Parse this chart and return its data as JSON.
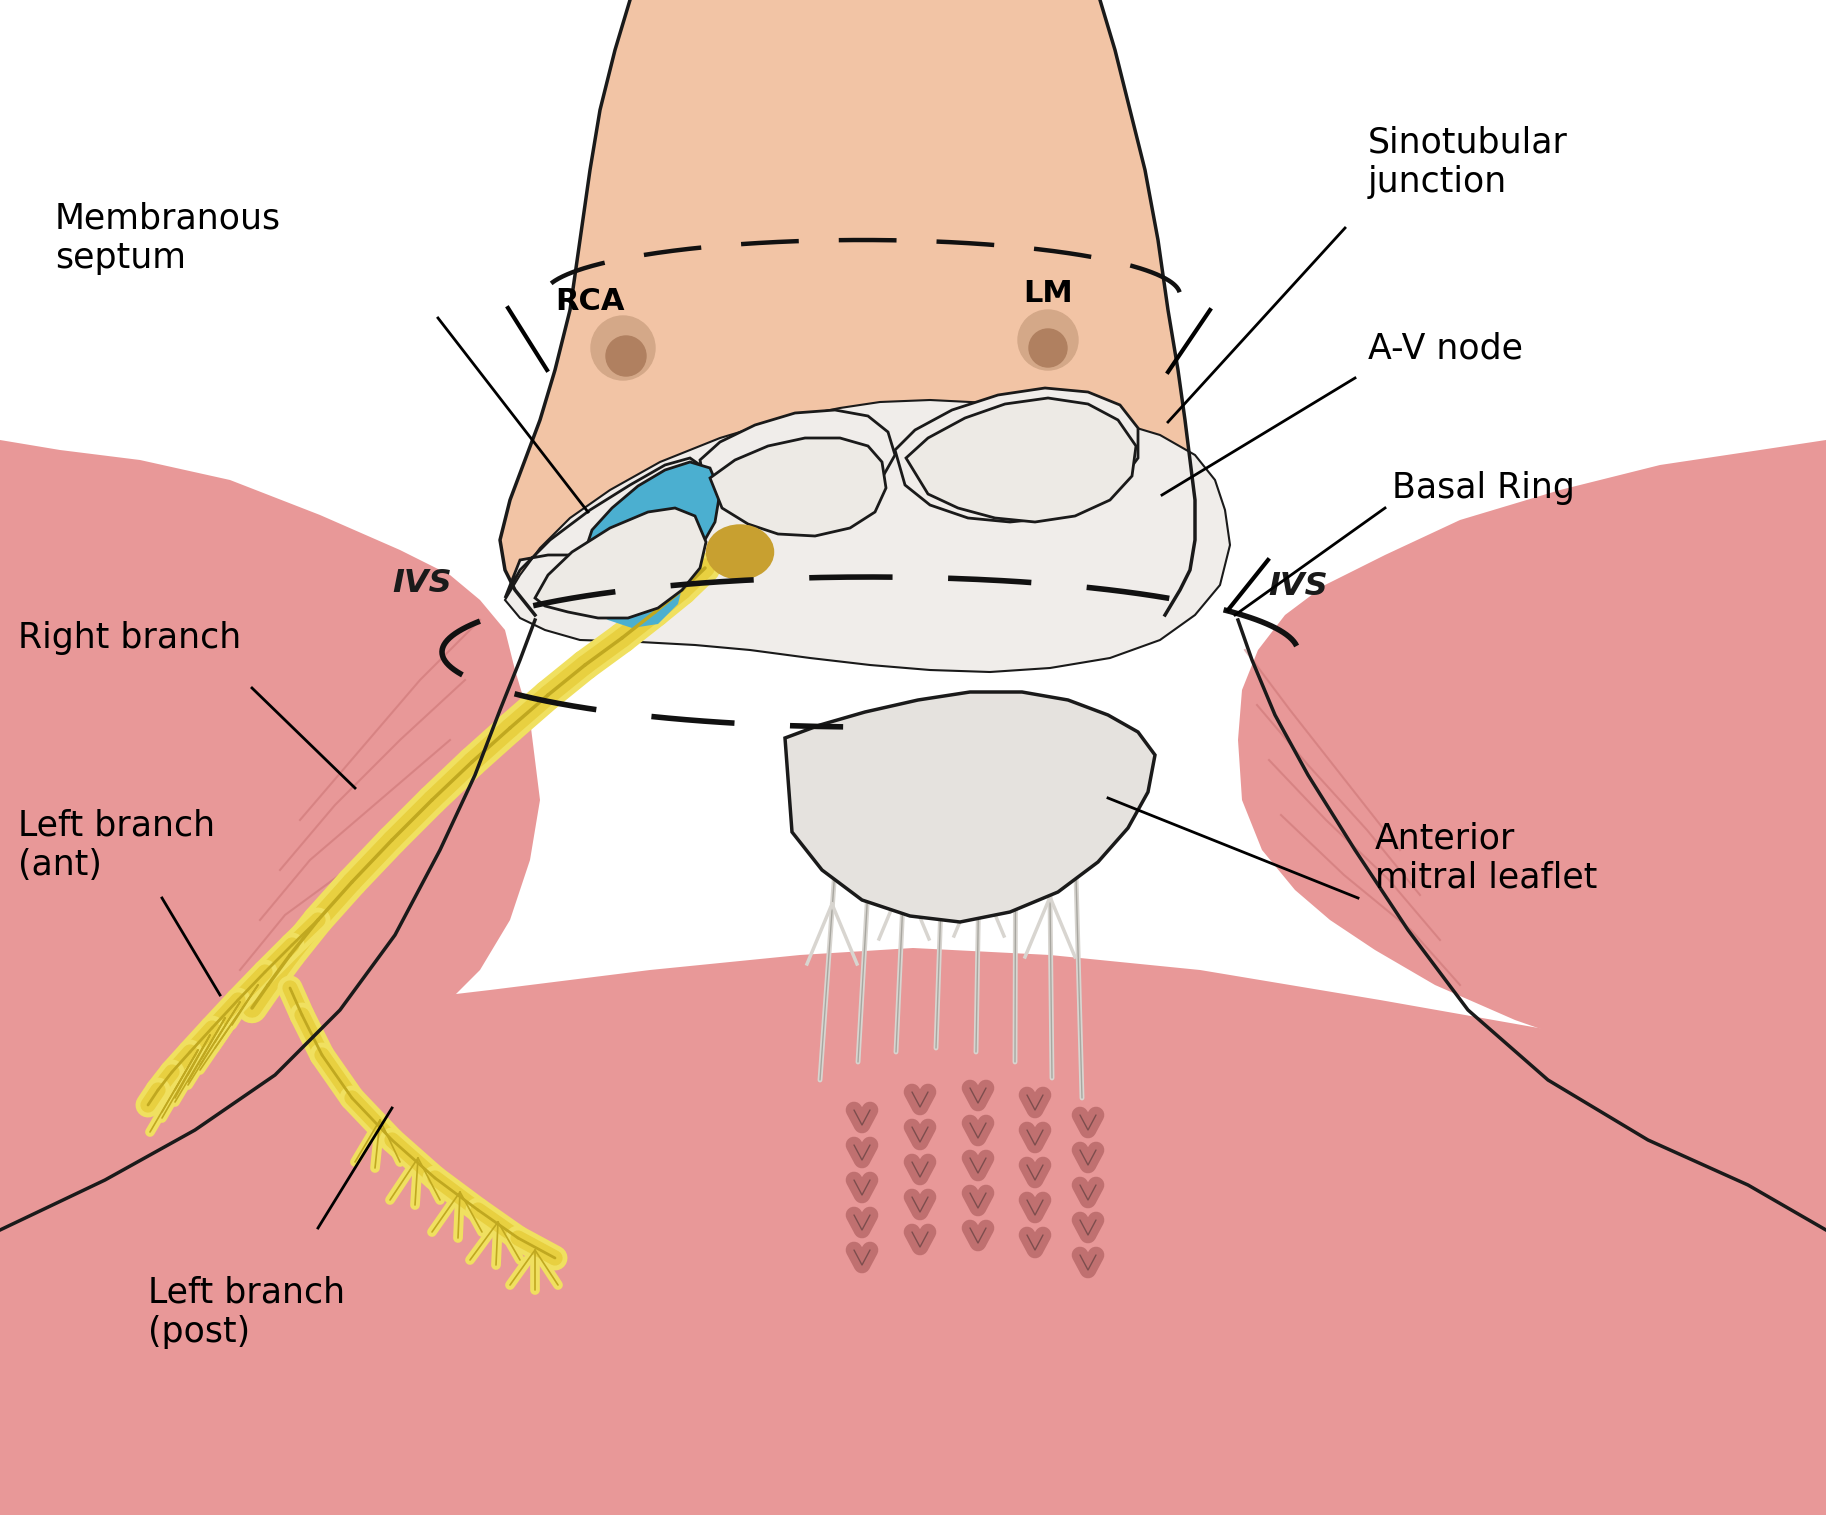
{
  "bg_color": "#ffffff",
  "labels": {
    "membranous_septum": "Membranous\nseptum",
    "right_branch": "Right branch",
    "left_branch_ant": "Left branch\n(ant)",
    "left_branch_post": "Left branch\n(post)",
    "ivs_left": "IVS",
    "ivs_right": "IVS",
    "rca": "RCA",
    "lm": "LM",
    "sinotubular": "Sinotubular\njunction",
    "av_node": "A-V node",
    "basal_ring": "Basal Ring",
    "anterior_mitral": "Anterior\nmitral leaflet"
  },
  "colors": {
    "aorta_body": "#F2C4A5",
    "aorta_outline": "#1a1a1a",
    "sinus_white": "#F0EDEA",
    "myocardium_pink": "#E89898",
    "myocardium_dark": "#C87070",
    "blue_region": "#4BAFD0",
    "gold_node": "#C8A030",
    "yellow_bundle": "#F0E060",
    "yellow_bundle_dark": "#C0A820",
    "yellow_bundle_mid": "#E8D040",
    "mitral_white": "#E5E2DE",
    "dashed_line": "#111111",
    "text_color": "#000000",
    "tendon_white": "#D8D5D0",
    "cusp_color": "#EDEAE5",
    "papillary_color": "#C07070",
    "ostium_outer": "#D4A888",
    "ostium_inner": "#B08060"
  },
  "figsize": [
    18.26,
    15.15
  ],
  "dpi": 100
}
